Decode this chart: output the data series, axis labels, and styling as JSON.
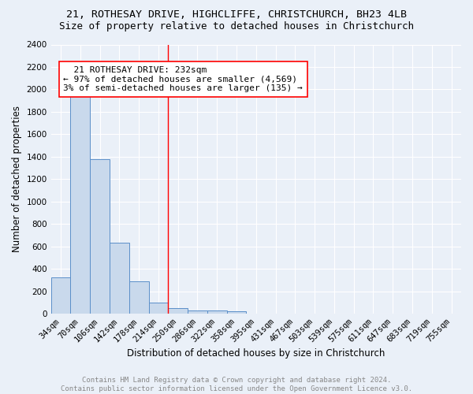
{
  "title1": "21, ROTHESAY DRIVE, HIGHCLIFFE, CHRISTCHURCH, BH23 4LB",
  "title2": "Size of property relative to detached houses in Christchurch",
  "xlabel": "Distribution of detached houses by size in Christchurch",
  "ylabel": "Number of detached properties",
  "bin_labels": [
    "34sqm",
    "70sqm",
    "106sqm",
    "142sqm",
    "178sqm",
    "214sqm",
    "250sqm",
    "286sqm",
    "322sqm",
    "358sqm",
    "395sqm",
    "431sqm",
    "467sqm",
    "503sqm",
    "539sqm",
    "575sqm",
    "611sqm",
    "647sqm",
    "683sqm",
    "719sqm",
    "755sqm"
  ],
  "bar_values": [
    320,
    1950,
    1375,
    630,
    285,
    95,
    50,
    30,
    25,
    20,
    0,
    0,
    0,
    0,
    0,
    0,
    0,
    0,
    0,
    0,
    0
  ],
  "bar_color": "#c9d9ec",
  "bar_edge_color": "#5b8fc9",
  "vline_x": 5.5,
  "vline_color": "red",
  "annotation_text": "  21 ROTHESAY DRIVE: 232sqm\n← 97% of detached houses are smaller (4,569)\n3% of semi-detached houses are larger (135) →",
  "annotation_box_color": "white",
  "annotation_box_edge": "red",
  "ylim": [
    0,
    2400
  ],
  "yticks": [
    0,
    200,
    400,
    600,
    800,
    1000,
    1200,
    1400,
    1600,
    1800,
    2000,
    2200,
    2400
  ],
  "footnote": "Contains HM Land Registry data © Crown copyright and database right 2024.\nContains public sector information licensed under the Open Government Licence v3.0.",
  "bg_color": "#eaf0f8",
  "grid_color": "white",
  "title_fontsize": 9.5,
  "subtitle_fontsize": 9,
  "axis_label_fontsize": 8.5,
  "tick_fontsize": 7.5,
  "annotation_fontsize": 8,
  "footnote_fontsize": 6.5
}
